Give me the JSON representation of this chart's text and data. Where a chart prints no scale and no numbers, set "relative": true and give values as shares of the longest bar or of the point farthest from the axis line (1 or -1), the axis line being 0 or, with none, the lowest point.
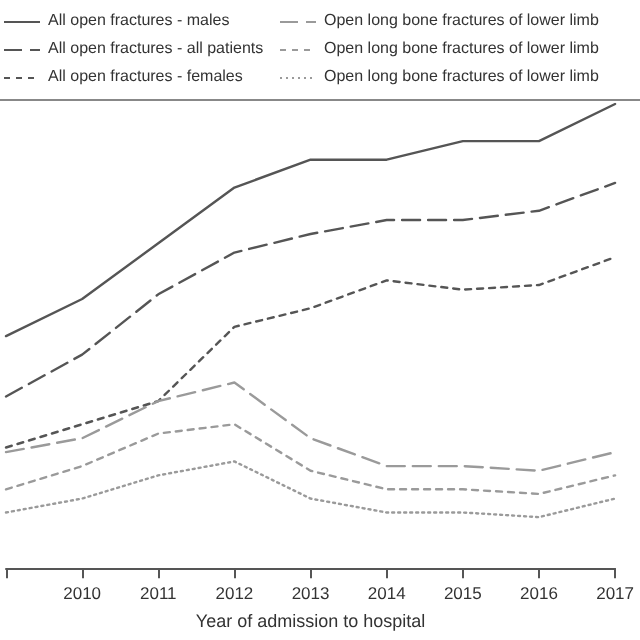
{
  "chart_data": {
    "type": "line",
    "relative": true,
    "xlabel": "Year of admission to hospital",
    "categories": [
      null,
      "2010",
      "2011",
      "2012",
      "2013",
      "2014",
      "2015",
      "2016",
      "2017"
    ],
    "legend": "top",
    "grid": false,
    "marker": "none",
    "series": [
      {
        "name": "All open fractures - males",
        "color": "#555555",
        "line_style": "solid",
        "values": [
          0.5,
          0.58,
          0.7,
          0.82,
          0.88,
          0.88,
          0.92,
          0.92,
          1
        ]
      },
      {
        "name": "All open fractures - all patients",
        "color": "#555555",
        "line_style": "dashed",
        "values": [
          0.37,
          0.46,
          0.59,
          0.68,
          0.72,
          0.75,
          0.75,
          0.77,
          0.83
        ]
      },
      {
        "name": "All open fractures - females",
        "color": "#555555",
        "line_style": "dashed",
        "values": [
          0.26,
          0.31,
          0.36,
          0.52,
          0.56,
          0.62,
          0.6,
          0.61,
          0.67
        ]
      },
      {
        "name": "Open long bone fractures of lower limb",
        "color": "#9a9a9a",
        "line_style": "dashed",
        "values": [
          0.25,
          0.28,
          0.36,
          0.4,
          0.28,
          0.22,
          0.22,
          0.21,
          0.25
        ]
      },
      {
        "name": "Open long bone fractures of lower limb",
        "color": "#9a9a9a",
        "line_style": "dashed",
        "values": [
          0.17,
          0.22,
          0.29,
          0.31,
          0.21,
          0.17,
          0.17,
          0.16,
          0.2
        ]
      },
      {
        "name": "Open long bone fractures of lower limb",
        "color": "#9a9a9a",
        "line_style": "dotted",
        "values": [
          0.12,
          0.15,
          0.2,
          0.23,
          0.15,
          0.12,
          0.12,
          0.11,
          0.15
        ]
      }
    ]
  }
}
